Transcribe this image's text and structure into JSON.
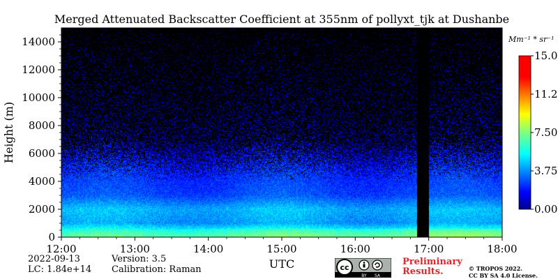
{
  "chart_data": {
    "type": "heatmap",
    "title": "Merged Attenuated Backscatter Coefficient at 355nm of pollyxt_tjk at Dushanbe",
    "xlabel": "UTC",
    "ylabel": "Height (m)",
    "x_ticks": [
      "12:00",
      "13:00",
      "14:00",
      "15:00",
      "16:00",
      "17:00",
      "18:00"
    ],
    "xlim": [
      "12:00",
      "18:00"
    ],
    "y_ticks": [
      0,
      2000,
      4000,
      6000,
      8000,
      10000,
      12000,
      14000
    ],
    "ylim": [
      0,
      15000
    ],
    "colorbar": {
      "unit_label": "Mm⁻¹ * sr⁻¹",
      "ticks": [
        "0.00",
        "3.75",
        "7.50",
        "11.25",
        "15.00"
      ],
      "range": [
        0,
        15
      ],
      "colormap": "jet"
    },
    "no_data_interval": [
      "16:50",
      "17:00"
    ],
    "profile": [
      {
        "height": 0,
        "value": 7.0
      },
      {
        "height": 400,
        "value": 6.2
      },
      {
        "height": 1000,
        "value": 4.2
      },
      {
        "height": 2000,
        "value": 4.6
      },
      {
        "height": 3000,
        "value": 3.0
      },
      {
        "height": 5000,
        "value": 2.4
      },
      {
        "height": 6500,
        "value": 1.8
      },
      {
        "height": 9000,
        "value": 1.0
      },
      {
        "height": 15000,
        "value": 0.5
      }
    ]
  },
  "info": {
    "date": "2022-09-13",
    "lc": "LC: 1.84e+14",
    "version": "Version: 3.5",
    "calibration": "Calibration: Raman",
    "preliminary_line1": "Preliminary",
    "preliminary_line2": "Results.",
    "copyright_line1": "© TROPOS 2022.",
    "copyright_line2": "CC BY SA 4.0 License.",
    "license_badge": {
      "cc": "cc",
      "by": "BY",
      "sa": "SA"
    }
  }
}
